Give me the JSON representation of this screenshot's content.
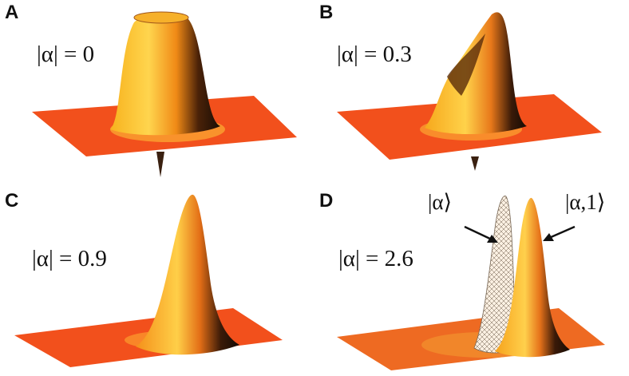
{
  "panels": [
    {
      "letter": "A",
      "label": "|α| = 0"
    },
    {
      "letter": "B",
      "label": "|α| = 0.3"
    },
    {
      "letter": "C",
      "label": "|α| = 0.9"
    },
    {
      "letter": "D",
      "label": "|α| = 2.6"
    }
  ],
  "annotations": {
    "coherent_state": "|α⟩",
    "photon_added_state": "|α,1⟩"
  },
  "colors": {
    "plane": "#f2501c",
    "surface_light": "#ffd24a",
    "surface_mid": "#f39a1c",
    "surface_dark": "#1a0e06",
    "wireframe": "#6b5a48"
  }
}
